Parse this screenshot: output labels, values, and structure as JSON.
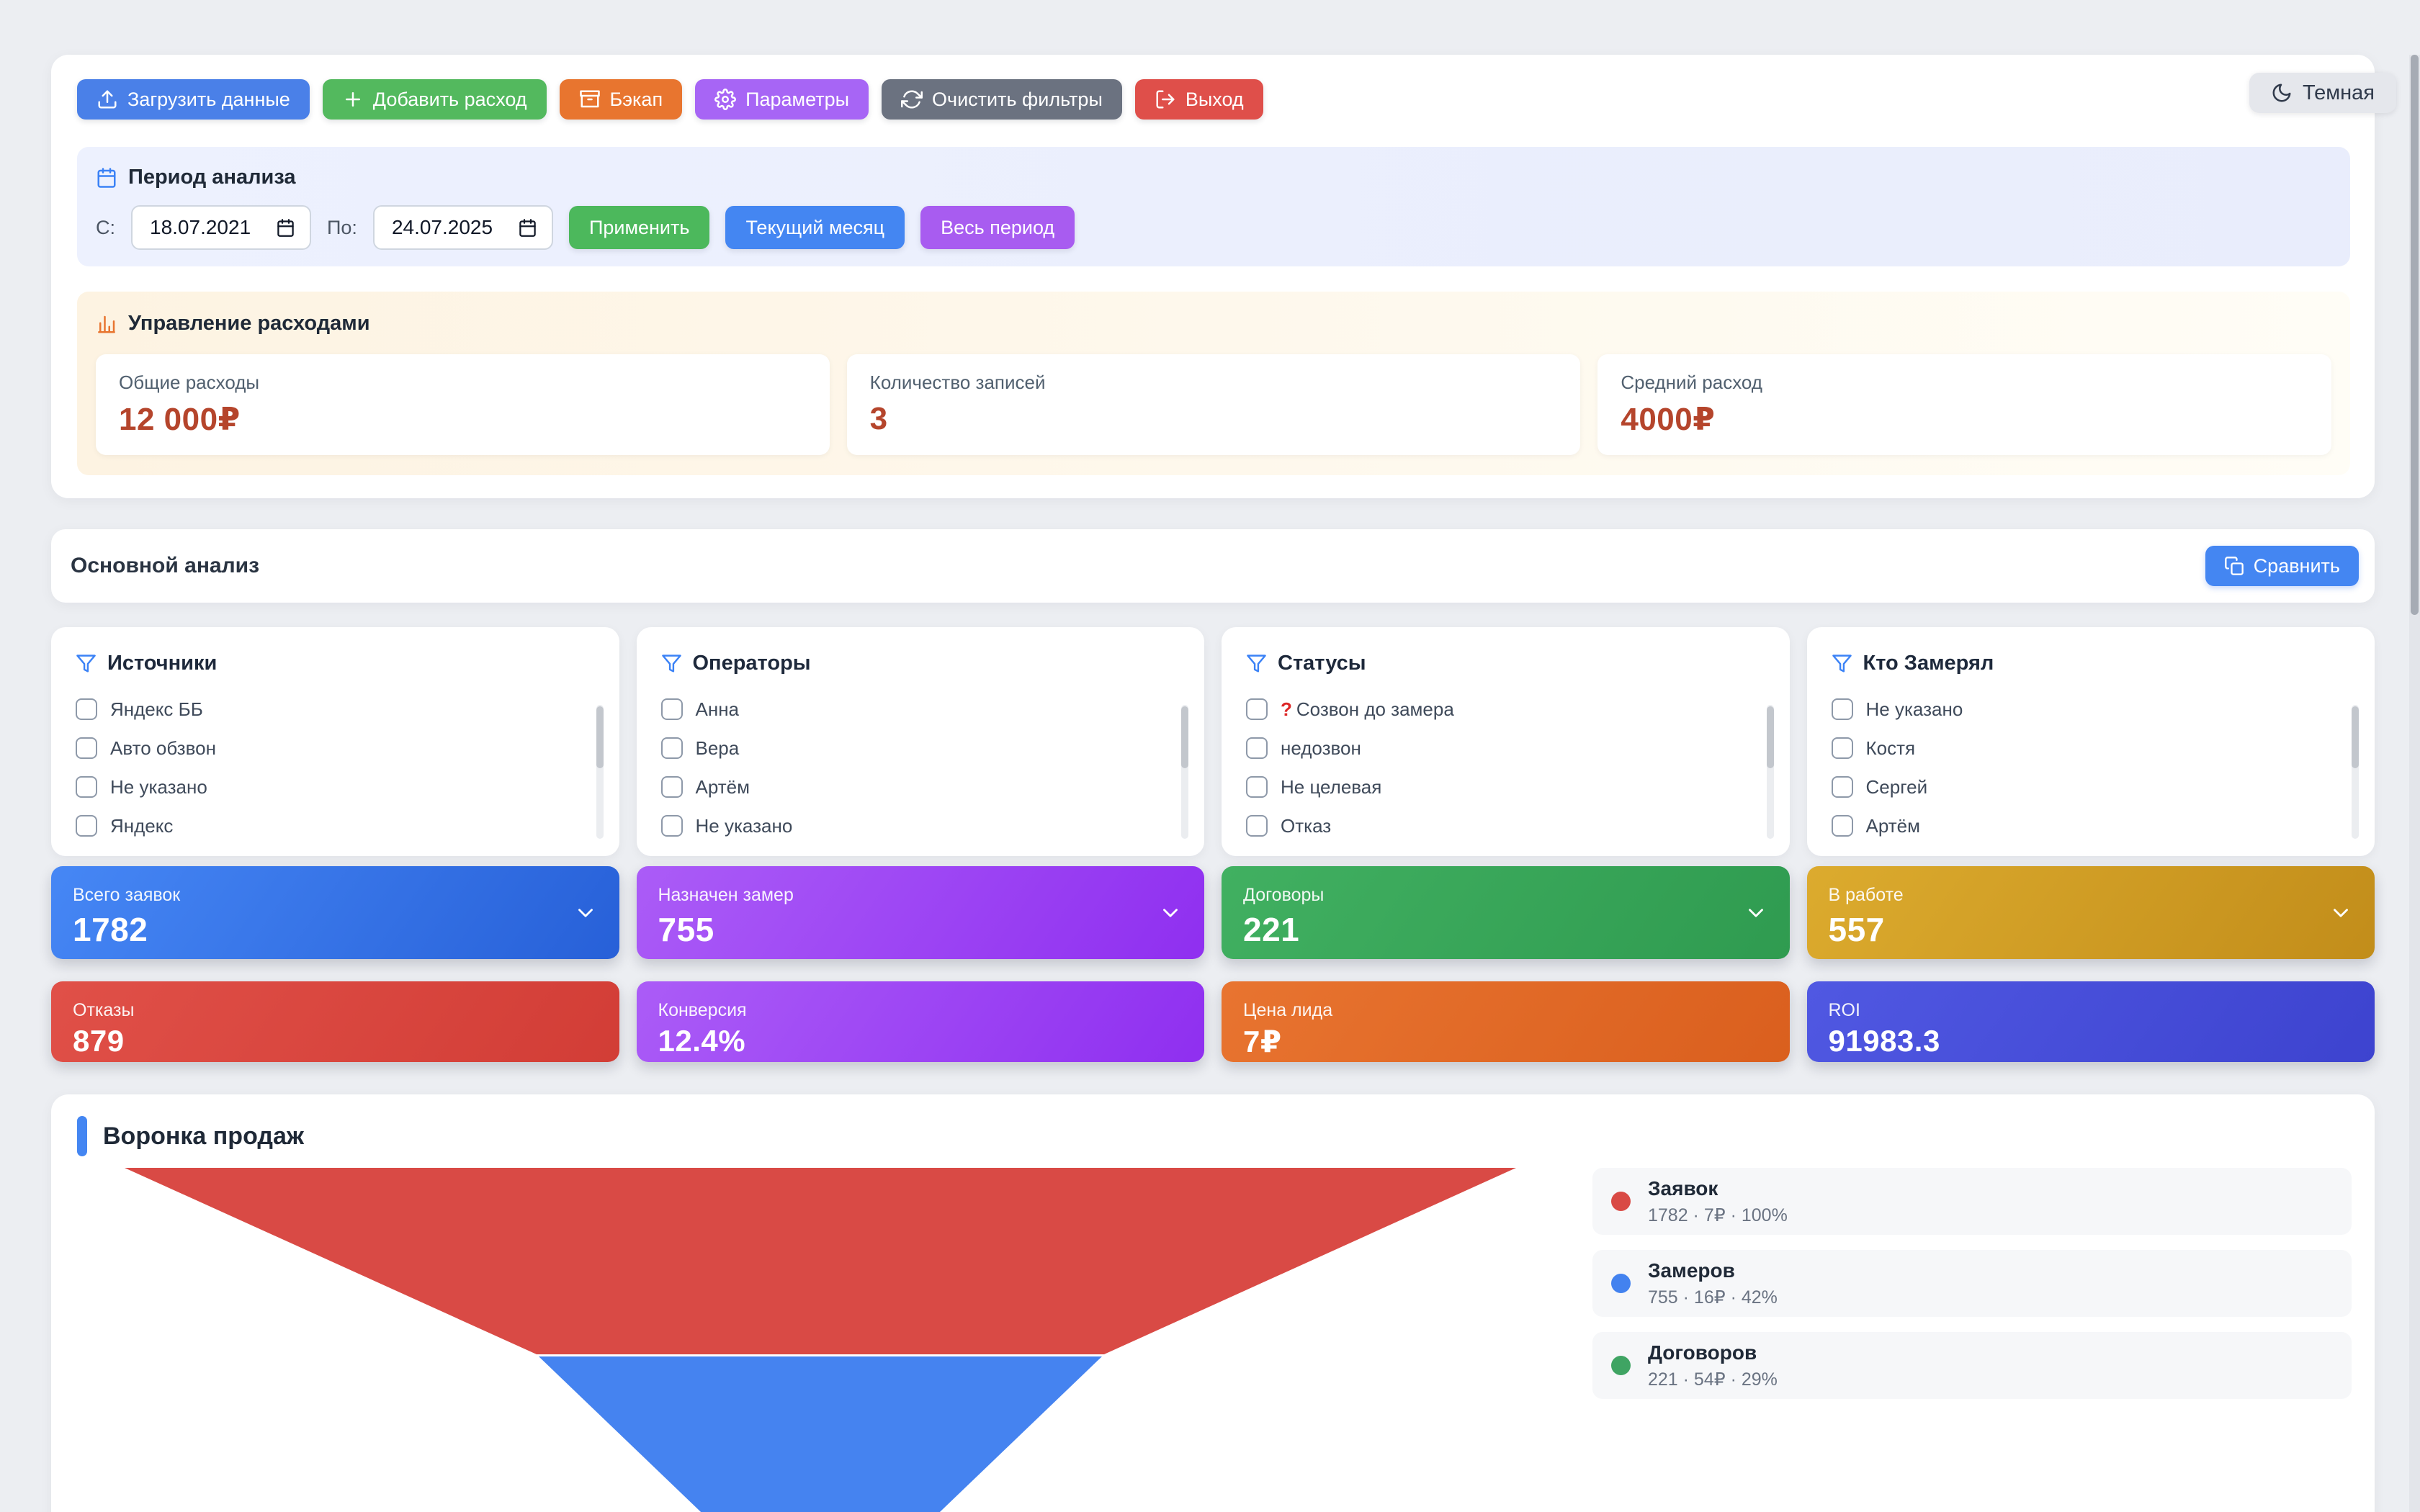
{
  "theme_toggle": {
    "label": "Темная",
    "icon": "moon-icon"
  },
  "toolbar": {
    "buttons": [
      {
        "label": "Загрузить данные",
        "icon": "upload-icon",
        "color": "#4a80e8",
        "name": "upload-data-button"
      },
      {
        "label": "Добавить расход",
        "icon": "plus-icon",
        "color": "#53b95e",
        "name": "add-expense-button"
      },
      {
        "label": "Бэкап",
        "icon": "archive-icon",
        "color": "#e8752f",
        "name": "backup-button"
      },
      {
        "label": "Параметры",
        "icon": "gear-icon",
        "color": "#a765f5",
        "name": "settings-button"
      },
      {
        "label": "Очистить фильтры",
        "icon": "refresh-icon",
        "color": "#6b7280",
        "name": "clear-filters-button"
      },
      {
        "label": "Выход",
        "icon": "logout-icon",
        "color": "#df4f4a",
        "name": "logout-button"
      }
    ]
  },
  "period": {
    "title": "Период анализа",
    "icon": "calendar-icon",
    "from_label": "С:",
    "from_value": "18.07.2021",
    "to_label": "По:",
    "to_value": "24.07.2025",
    "quick_buttons": [
      {
        "label": "Применить",
        "color": "#4cb85c",
        "name": "apply-period-button"
      },
      {
        "label": "Текущий месяц",
        "color": "#4486f2",
        "name": "current-month-button"
      },
      {
        "label": "Весь период",
        "color": "#a85cf0",
        "name": "all-period-button"
      }
    ]
  },
  "expenses": {
    "title": "Управление расходами",
    "icon": "bar-chart-icon",
    "stats": [
      {
        "label": "Общие расходы",
        "value": "12 000₽"
      },
      {
        "label": "Количество записей",
        "value": "3"
      },
      {
        "label": "Средний расход",
        "value": "4000₽"
      }
    ],
    "value_color": "#b5452c"
  },
  "analysis": {
    "title": "Основной анализ",
    "compare_button": {
      "label": "Сравнить",
      "icon": "copy-icon"
    }
  },
  "filters": [
    {
      "title": "Источники",
      "items": [
        {
          "label": "Яндекс ББ"
        },
        {
          "label": "Авто обзвон"
        },
        {
          "label": "Не указано"
        },
        {
          "label": "Яндекс"
        }
      ]
    },
    {
      "title": "Операторы",
      "items": [
        {
          "label": "Анна"
        },
        {
          "label": "Вера"
        },
        {
          "label": "Артём"
        },
        {
          "label": "Не указано"
        }
      ]
    },
    {
      "title": "Статусы",
      "items": [
        {
          "prefix": "?",
          "prefix_color": "#dc2626",
          "label": "Созвон до замера"
        },
        {
          "label": "недозвон"
        },
        {
          "label": "Не целевая"
        },
        {
          "label": "Отказ"
        }
      ]
    },
    {
      "title": "Кто Замерял",
      "items": [
        {
          "label": "Не указано"
        },
        {
          "label": "Костя"
        },
        {
          "label": "Сергей"
        },
        {
          "label": "Артём"
        }
      ]
    }
  ],
  "metrics_row1": [
    {
      "label": "Всего заявок",
      "value": "1782",
      "gradient": [
        "#4687f5",
        "#2760d8"
      ],
      "has_chevron": true,
      "name": "metric-total-leads"
    },
    {
      "label": "Назначен замер",
      "value": "755",
      "gradient": [
        "#ab5cf7",
        "#8f2ff0"
      ],
      "has_chevron": true,
      "name": "metric-measurements"
    },
    {
      "label": "Договоры",
      "value": "221",
      "gradient": [
        "#41b061",
        "#2f9b50"
      ],
      "has_chevron": true,
      "name": "metric-contracts"
    },
    {
      "label": "В работе",
      "value": "557",
      "gradient": [
        "#dcab2e",
        "#c28d1a"
      ],
      "has_chevron": true,
      "name": "metric-in-progress"
    }
  ],
  "metrics_row2": [
    {
      "label": "Отказы",
      "value": "879",
      "gradient": [
        "#e05048",
        "#d23d36"
      ],
      "has_chevron": false,
      "name": "metric-rejections"
    },
    {
      "label": "Конверсия",
      "value": "12.4%",
      "gradient": [
        "#ab5cf7",
        "#8f2ff0"
      ],
      "has_chevron": false,
      "name": "metric-conversion"
    },
    {
      "label": "Цена лида",
      "value": "7₽",
      "gradient": [
        "#e87430",
        "#da5f1e"
      ],
      "has_chevron": false,
      "name": "metric-lead-cost"
    },
    {
      "label": "ROI",
      "value": "91983.3",
      "gradient": [
        "#5058e2",
        "#3d43cf"
      ],
      "has_chevron": false,
      "name": "metric-roi"
    }
  ],
  "funnel": {
    "title": "Воронка продаж"
  },
  "chart_data": {
    "type": "funnel",
    "title": "Воронка продаж",
    "stages": [
      {
        "label": "Заявок",
        "value": 1782,
        "cost_per_unit": "7₽",
        "percent": "100%",
        "color": "#d94a45"
      },
      {
        "label": "Замеров",
        "value": 755,
        "cost_per_unit": "16₽",
        "percent": "42%",
        "color": "#4382ef"
      },
      {
        "label": "Договоров",
        "value": 221,
        "cost_per_unit": "54₽",
        "percent": "29%",
        "color": "#3fa463"
      }
    ],
    "legend_position": "right",
    "orientation": "top-wide-inverted-triangle",
    "note_visible_segments": "red and blue segments visible, green cut off below viewport"
  }
}
